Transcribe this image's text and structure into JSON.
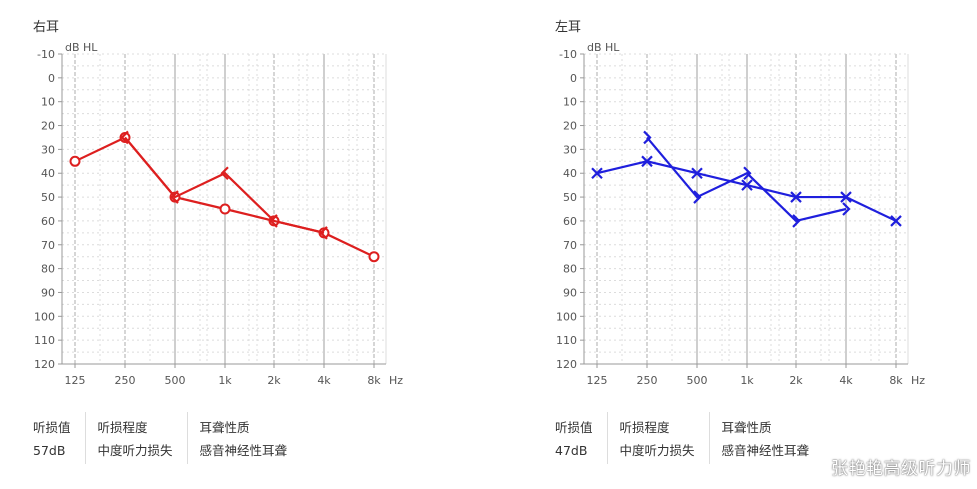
{
  "chart_data": [
    {
      "type": "line",
      "title": "右耳",
      "ylabel": "dB HL",
      "xlabel": "Hz",
      "categories": [
        "125",
        "250",
        "500",
        "1k",
        "2k",
        "4k",
        "8k"
      ],
      "y_ticks": [
        "-10",
        "0",
        "10",
        "20",
        "30",
        "40",
        "50",
        "60",
        "70",
        "80",
        "90",
        "100",
        "110",
        "120"
      ],
      "ylim": [
        -10,
        120
      ],
      "y_inverted": true,
      "color": "#dd1f1f",
      "series": [
        {
          "kind": "air",
          "marker": "circle",
          "points": [
            [
              "125",
              35
            ],
            [
              "250",
              25
            ],
            [
              "500",
              50
            ],
            [
              "1k",
              55
            ],
            [
              "2k",
              60
            ],
            [
              "4k",
              65
            ],
            [
              "8k",
              75
            ]
          ]
        },
        {
          "kind": "bone",
          "marker": "bracket-left",
          "points": [
            [
              "250",
              25
            ],
            [
              "500",
              50
            ],
            [
              "1k",
              40
            ],
            [
              "2k",
              60
            ],
            [
              "4k",
              65
            ]
          ]
        }
      ],
      "summary": [
        {
          "label": "听损值",
          "value": "57dB"
        },
        {
          "label": "听损程度",
          "value": "中度听力损失"
        },
        {
          "label": "耳聋性质",
          "value": "感音神经性耳聋"
        }
      ]
    },
    {
      "type": "line",
      "title": "左耳",
      "ylabel": "dB HL",
      "xlabel": "Hz",
      "categories": [
        "125",
        "250",
        "500",
        "1k",
        "2k",
        "4k",
        "8k"
      ],
      "y_ticks": [
        "-10",
        "0",
        "10",
        "20",
        "30",
        "40",
        "50",
        "60",
        "70",
        "80",
        "90",
        "100",
        "110",
        "120"
      ],
      "ylim": [
        -10,
        120
      ],
      "y_inverted": true,
      "color": "#1f1fdd",
      "series": [
        {
          "kind": "air",
          "marker": "cross",
          "points": [
            [
              "125",
              40
            ],
            [
              "250",
              35
            ],
            [
              "500",
              40
            ],
            [
              "1k",
              45
            ],
            [
              "2k",
              50
            ],
            [
              "4k",
              50
            ],
            [
              "8k",
              60
            ]
          ]
        },
        {
          "kind": "bone",
          "marker": "bracket-right",
          "points": [
            [
              "250",
              25
            ],
            [
              "500",
              50
            ],
            [
              "1k",
              40
            ],
            [
              "2k",
              60
            ],
            [
              "4k",
              55
            ]
          ]
        }
      ],
      "summary": [
        {
          "label": "听损值",
          "value": "47dB"
        },
        {
          "label": "听损程度",
          "value": "中度听力损失"
        },
        {
          "label": "耳聋性质",
          "value": "感音神经性耳聋"
        }
      ]
    }
  ],
  "watermark": "张艳艳高级听力师"
}
